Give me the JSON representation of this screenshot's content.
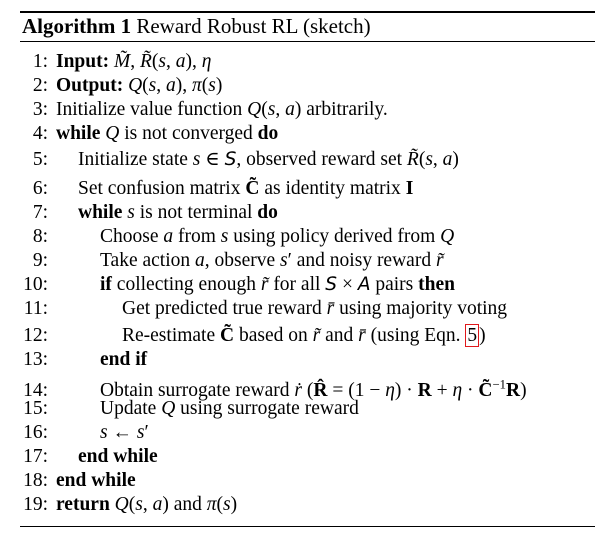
{
  "algorithm": {
    "label": "Algorithm 1",
    "title": "Reward Robust RL (sketch)"
  },
  "lines": [
    {
      "num": "1:",
      "text": "Input: M̃, R̃(s, a), η"
    },
    {
      "num": "2:",
      "text": "Output: Q(s, a), π(s)"
    },
    {
      "num": "3:",
      "text": "Initialize value function Q(s, a) arbitrarily."
    },
    {
      "num": "4:",
      "text": "while Q is not converged do"
    },
    {
      "num": "5:",
      "text": "Initialize state s ∈ S, observed reward set R̃(s, a)"
    },
    {
      "num": "6:",
      "text": "Set confusion matrix C̃ as identity matrix I"
    },
    {
      "num": "7:",
      "text": "while s is not terminal do"
    },
    {
      "num": "8:",
      "text": "Choose a from s using policy derived from Q"
    },
    {
      "num": "9:",
      "text": "Take action a, observe s′ and noisy reward r̃"
    },
    {
      "num": "10:",
      "text": "if collecting enough r̃ for all S × A pairs then"
    },
    {
      "num": "11:",
      "text": "Get predicted true reward r̄ using majority voting"
    },
    {
      "num": "12:",
      "text": "Re-estimate C̃ based on r̃ and r̄ (using Eqn. 5)"
    },
    {
      "num": "13:",
      "text": "end if"
    },
    {
      "num": "14:",
      "text": "Obtain surrogate reward ṙ (R̂ = (1 − η) · R + η · C̃⁻¹R)"
    },
    {
      "num": "15:",
      "text": "Update Q using surrogate reward"
    },
    {
      "num": "16:",
      "text": "s ← s′"
    },
    {
      "num": "17:",
      "text": "end while"
    },
    {
      "num": "18:",
      "text": "end while"
    },
    {
      "num": "19:",
      "text": "return Q(s, a) and π(s)"
    }
  ]
}
